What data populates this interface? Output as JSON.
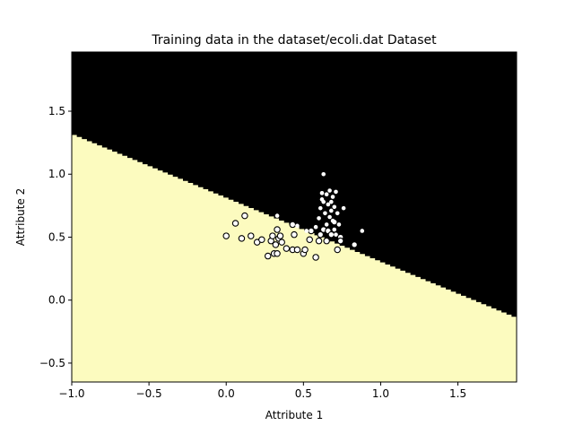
{
  "chart_data": {
    "type": "scatter",
    "title": "Training data in the dataset/ecoli.dat Dataset",
    "xlabel": "Attribute 1",
    "ylabel": "Attribute 2",
    "xlim": [
      -1.0,
      1.88
    ],
    "ylim": [
      -0.65,
      1.97
    ],
    "xticks": [
      -1.0,
      -0.5,
      0.0,
      0.5,
      1.0,
      1.5
    ],
    "xtick_labels": [
      "−1.0",
      "−0.5",
      "0.0",
      "0.5",
      "1.0",
      "1.5"
    ],
    "yticks": [
      -0.5,
      0.0,
      0.5,
      1.0,
      1.5
    ],
    "ytick_labels": [
      "−0.5",
      "0.0",
      "0.5",
      "1.0",
      "1.5"
    ],
    "grid": false,
    "decision_regions": {
      "boundary_line": {
        "x": [
          -1.0,
          1.88
        ],
        "y": [
          1.32,
          -0.14
        ]
      },
      "above_color": "#000000",
      "below_color": "#fcfbbf",
      "steps": 88
    },
    "series": [
      {
        "marker": "open-circle",
        "color": "#000000",
        "fill": "#ffffff",
        "points": [
          [
            0.0,
            0.51
          ],
          [
            0.06,
            0.61
          ],
          [
            0.1,
            0.49
          ],
          [
            0.12,
            0.67
          ],
          [
            0.16,
            0.51
          ],
          [
            0.2,
            0.46
          ],
          [
            0.23,
            0.48
          ],
          [
            0.27,
            0.35
          ],
          [
            0.29,
            0.47
          ],
          [
            0.3,
            0.51
          ],
          [
            0.31,
            0.37
          ],
          [
            0.32,
            0.44
          ],
          [
            0.33,
            0.56
          ],
          [
            0.33,
            0.37
          ],
          [
            0.34,
            0.49
          ],
          [
            0.35,
            0.51
          ],
          [
            0.36,
            0.46
          ],
          [
            0.39,
            0.41
          ],
          [
            0.43,
            0.4
          ],
          [
            0.43,
            0.6
          ],
          [
            0.44,
            0.52
          ],
          [
            0.46,
            0.4
          ],
          [
            0.5,
            0.37
          ],
          [
            0.51,
            0.4
          ],
          [
            0.54,
            0.48
          ],
          [
            0.55,
            0.55
          ],
          [
            0.58,
            0.34
          ],
          [
            0.6,
            0.47
          ],
          [
            0.61,
            0.52
          ],
          [
            0.63,
            0.56
          ],
          [
            0.65,
            0.47
          ],
          [
            0.66,
            0.55
          ],
          [
            0.68,
            0.52
          ],
          [
            0.7,
            0.62
          ],
          [
            0.72,
            0.4
          ],
          [
            0.74,
            0.5
          ],
          [
            0.74,
            0.47
          ],
          [
            0.83,
            0.44
          ]
        ]
      },
      {
        "marker": "solid-dot",
        "color": "#ffffff",
        "points": [
          [
            0.33,
            0.67
          ],
          [
            0.46,
            0.59
          ],
          [
            0.52,
            0.55
          ],
          [
            0.58,
            0.58
          ],
          [
            0.6,
            0.65
          ],
          [
            0.61,
            0.73
          ],
          [
            0.62,
            0.8
          ],
          [
            0.62,
            0.85
          ],
          [
            0.63,
            1.0
          ],
          [
            0.63,
            0.78
          ],
          [
            0.64,
            0.69
          ],
          [
            0.65,
            0.84
          ],
          [
            0.66,
            0.76
          ],
          [
            0.67,
            0.87
          ],
          [
            0.67,
            0.66
          ],
          [
            0.68,
            0.71
          ],
          [
            0.69,
            0.63
          ],
          [
            0.69,
            0.82
          ],
          [
            0.7,
            0.74
          ],
          [
            0.7,
            0.56
          ],
          [
            0.71,
            0.86
          ],
          [
            0.72,
            0.69
          ],
          [
            0.73,
            0.6
          ],
          [
            0.76,
            0.73
          ],
          [
            0.88,
            0.55
          ],
          [
            0.71,
            0.52
          ],
          [
            0.65,
            0.6
          ],
          [
            0.68,
            0.78
          ]
        ]
      }
    ]
  }
}
